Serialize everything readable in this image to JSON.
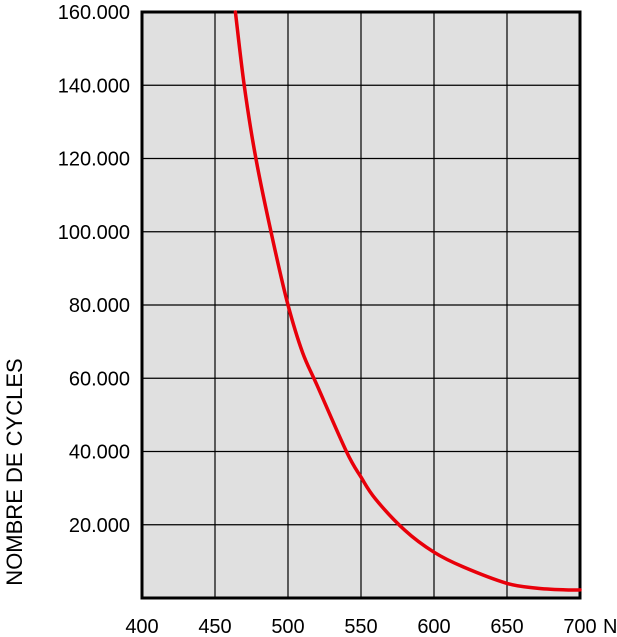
{
  "chart_data": {
    "type": "line",
    "title": "",
    "xlabel": "",
    "ylabel": "NOMBRE DE CYCLES",
    "x_unit": "N",
    "xlim": [
      400,
      700
    ],
    "ylim": [
      0,
      160000
    ],
    "x_ticks": [
      {
        "value": 400,
        "label": "400"
      },
      {
        "value": 450,
        "label": "450"
      },
      {
        "value": 500,
        "label": "500"
      },
      {
        "value": 550,
        "label": "550"
      },
      {
        "value": 600,
        "label": "600"
      },
      {
        "value": 650,
        "label": "650"
      },
      {
        "value": 700,
        "label": "700"
      }
    ],
    "y_ticks": [
      {
        "value": 20000,
        "label": "20.000"
      },
      {
        "value": 40000,
        "label": "40.000"
      },
      {
        "value": 60000,
        "label": "60.000"
      },
      {
        "value": 80000,
        "label": "80.000"
      },
      {
        "value": 100000,
        "label": "100.000"
      },
      {
        "value": 120000,
        "label": "120.000"
      },
      {
        "value": 140000,
        "label": "140.000"
      },
      {
        "value": 160000,
        "label": "160.000"
      }
    ],
    "grid": true,
    "colors": {
      "plot_background": "#e0e0e0",
      "grid": "#000000",
      "line": "#e8000a"
    },
    "series": [
      {
        "color": "#e8000a",
        "x": [
          464,
          470,
          478,
          490,
          500,
          510,
          520,
          540,
          550,
          560,
          580,
          600,
          620,
          650,
          670,
          690,
          700
        ],
        "y": [
          160000,
          140000,
          120000,
          97000,
          80000,
          67000,
          58000,
          40000,
          33000,
          27000,
          18500,
          12500,
          8500,
          4000,
          2700,
          2200,
          2200
        ]
      }
    ]
  }
}
